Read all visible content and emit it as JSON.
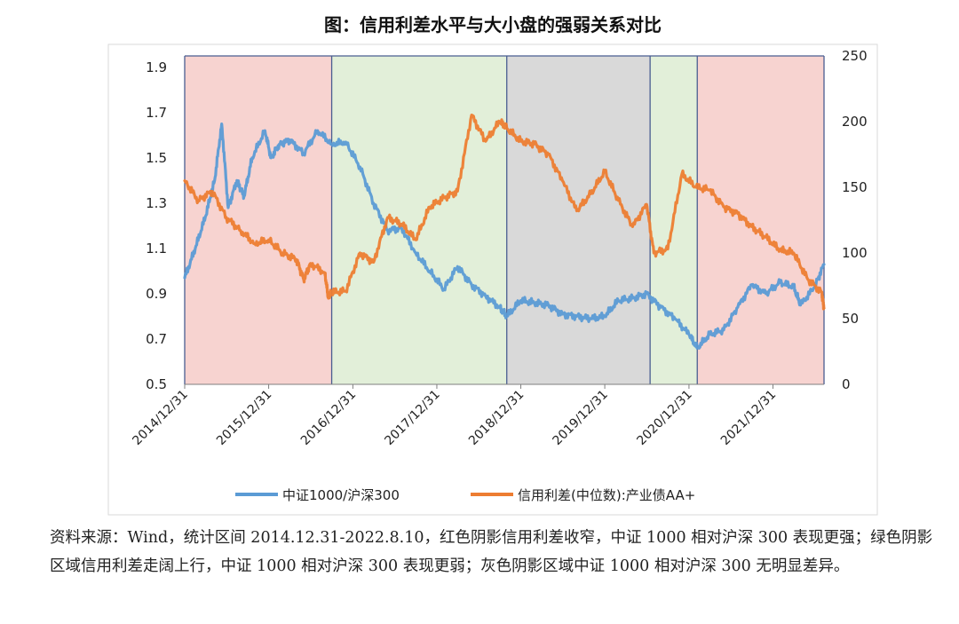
{
  "chart_data": {
    "type": "line",
    "title": "图：信用利差水平与大小盘的强弱关系对比",
    "y_left": {
      "ticks": [
        "0.5",
        "0.7",
        "0.9",
        "1.1",
        "1.3",
        "1.5",
        "1.7",
        "1.9"
      ],
      "lim": [
        0.5,
        1.95
      ]
    },
    "y_right": {
      "ticks": [
        "0",
        "50",
        "100",
        "150",
        "200",
        "250"
      ],
      "lim": [
        0,
        250
      ]
    },
    "x_ticks": [
      "2014/12/31",
      "2015/12/31",
      "2016/12/31",
      "2017/12/31",
      "2018/12/31",
      "2019/12/31",
      "2020/12/31",
      "2021/12/31"
    ],
    "x_range": [
      "2014-12-31",
      "2022-08-10"
    ],
    "shaded_regions": [
      {
        "start": "2014-12-31",
        "end": "2016-09-30",
        "color": "#f7d3d0"
      },
      {
        "start": "2016-09-30",
        "end": "2018-10-31",
        "color": "#e2efd9"
      },
      {
        "start": "2018-10-31",
        "end": "2020-07-15",
        "color": "#d9d9d9"
      },
      {
        "start": "2020-07-15",
        "end": "2021-02-05",
        "color": "#e2efd9"
      },
      {
        "start": "2021-02-05",
        "end": "2022-08-10",
        "color": "#f7d3d0"
      }
    ],
    "series": [
      {
        "name": "中证1000/沪深300",
        "axis": "left",
        "color": "#5b9bd5",
        "points": [
          [
            "2014-12-31",
            0.97
          ],
          [
            "2015-02-15",
            1.1
          ],
          [
            "2015-03-31",
            1.24
          ],
          [
            "2015-05-10",
            1.4
          ],
          [
            "2015-06-10",
            1.65
          ],
          [
            "2015-07-08",
            1.28
          ],
          [
            "2015-08-15",
            1.4
          ],
          [
            "2015-09-15",
            1.33
          ],
          [
            "2015-10-20",
            1.5
          ],
          [
            "2015-12-15",
            1.62
          ],
          [
            "2016-01-10",
            1.5
          ],
          [
            "2016-02-15",
            1.56
          ],
          [
            "2016-03-31",
            1.58
          ],
          [
            "2016-05-31",
            1.52
          ],
          [
            "2016-07-31",
            1.62
          ],
          [
            "2016-09-30",
            1.56
          ],
          [
            "2016-11-30",
            1.57
          ],
          [
            "2017-01-31",
            1.46
          ],
          [
            "2017-03-31",
            1.3
          ],
          [
            "2017-05-31",
            1.18
          ],
          [
            "2017-07-31",
            1.19
          ],
          [
            "2017-09-30",
            1.08
          ],
          [
            "2017-11-30",
            1.0
          ],
          [
            "2018-01-31",
            0.92
          ],
          [
            "2018-03-31",
            1.02
          ],
          [
            "2018-05-31",
            0.94
          ],
          [
            "2018-07-31",
            0.89
          ],
          [
            "2018-09-30",
            0.84
          ],
          [
            "2018-10-31",
            0.8
          ],
          [
            "2018-12-31",
            0.87
          ],
          [
            "2019-02-28",
            0.86
          ],
          [
            "2019-04-30",
            0.85
          ],
          [
            "2019-06-30",
            0.81
          ],
          [
            "2019-08-31",
            0.8
          ],
          [
            "2019-10-31",
            0.79
          ],
          [
            "2019-12-31",
            0.8
          ],
          [
            "2020-02-28",
            0.87
          ],
          [
            "2020-04-30",
            0.88
          ],
          [
            "2020-06-30",
            0.9
          ],
          [
            "2020-08-31",
            0.84
          ],
          [
            "2020-10-31",
            0.79
          ],
          [
            "2020-12-31",
            0.72
          ],
          [
            "2021-02-05",
            0.66
          ],
          [
            "2021-03-31",
            0.72
          ],
          [
            "2021-05-31",
            0.74
          ],
          [
            "2021-07-31",
            0.84
          ],
          [
            "2021-09-30",
            0.94
          ],
          [
            "2021-11-30",
            0.9
          ],
          [
            "2022-01-31",
            0.95
          ],
          [
            "2022-03-31",
            0.93
          ],
          [
            "2022-04-30",
            0.85
          ],
          [
            "2022-06-30",
            0.93
          ],
          [
            "2022-08-10",
            1.03
          ]
        ]
      },
      {
        "name": "信用利差(中位数):产业债AA+",
        "axis": "right",
        "color": "#ed7d31",
        "points": [
          [
            "2014-12-31",
            155
          ],
          [
            "2015-02-28",
            140
          ],
          [
            "2015-04-30",
            147
          ],
          [
            "2015-06-30",
            127
          ],
          [
            "2015-08-31",
            117
          ],
          [
            "2015-10-31",
            107
          ],
          [
            "2015-12-31",
            110
          ],
          [
            "2016-02-29",
            100
          ],
          [
            "2016-04-30",
            95
          ],
          [
            "2016-05-31",
            80
          ],
          [
            "2016-06-30",
            92
          ],
          [
            "2016-08-31",
            85
          ],
          [
            "2016-09-15",
            66
          ],
          [
            "2016-09-30",
            70
          ],
          [
            "2016-11-30",
            71
          ],
          [
            "2017-01-31",
            100
          ],
          [
            "2017-03-31",
            93
          ],
          [
            "2017-05-31",
            127
          ],
          [
            "2017-07-31",
            122
          ],
          [
            "2017-09-30",
            110
          ],
          [
            "2017-11-30",
            135
          ],
          [
            "2018-01-31",
            142
          ],
          [
            "2018-03-31",
            147
          ],
          [
            "2018-05-31",
            205
          ],
          [
            "2018-07-31",
            185
          ],
          [
            "2018-09-30",
            200
          ],
          [
            "2018-10-31",
            195
          ],
          [
            "2018-12-31",
            185
          ],
          [
            "2019-02-28",
            183
          ],
          [
            "2019-04-30",
            175
          ],
          [
            "2019-06-30",
            155
          ],
          [
            "2019-08-31",
            132
          ],
          [
            "2019-10-31",
            145
          ],
          [
            "2019-12-31",
            162
          ],
          [
            "2020-02-28",
            140
          ],
          [
            "2020-04-30",
            120
          ],
          [
            "2020-06-30",
            137
          ],
          [
            "2020-07-31",
            100
          ],
          [
            "2020-09-30",
            103
          ],
          [
            "2020-11-30",
            160
          ],
          [
            "2021-01-31",
            150
          ],
          [
            "2021-03-31",
            148
          ],
          [
            "2021-05-31",
            135
          ],
          [
            "2021-07-31",
            130
          ],
          [
            "2021-09-30",
            120
          ],
          [
            "2021-11-30",
            112
          ],
          [
            "2022-01-31",
            102
          ],
          [
            "2022-03-31",
            100
          ],
          [
            "2022-05-31",
            80
          ],
          [
            "2022-07-31",
            70
          ],
          [
            "2022-08-10",
            58
          ]
        ]
      }
    ],
    "legend_position": "bottom"
  },
  "source_note": "资料来源：Wind，统计区间 2014.12.31-2022.8.10，红色阴影信用利差收窄，中证 1000 相对沪深 300 表现更强；绿色阴影区域信用利差走阔上行，中证 1000 相对沪深 300 表现更弱；灰色阴影区域中证 1000 相对沪深 300 无明显差异。"
}
